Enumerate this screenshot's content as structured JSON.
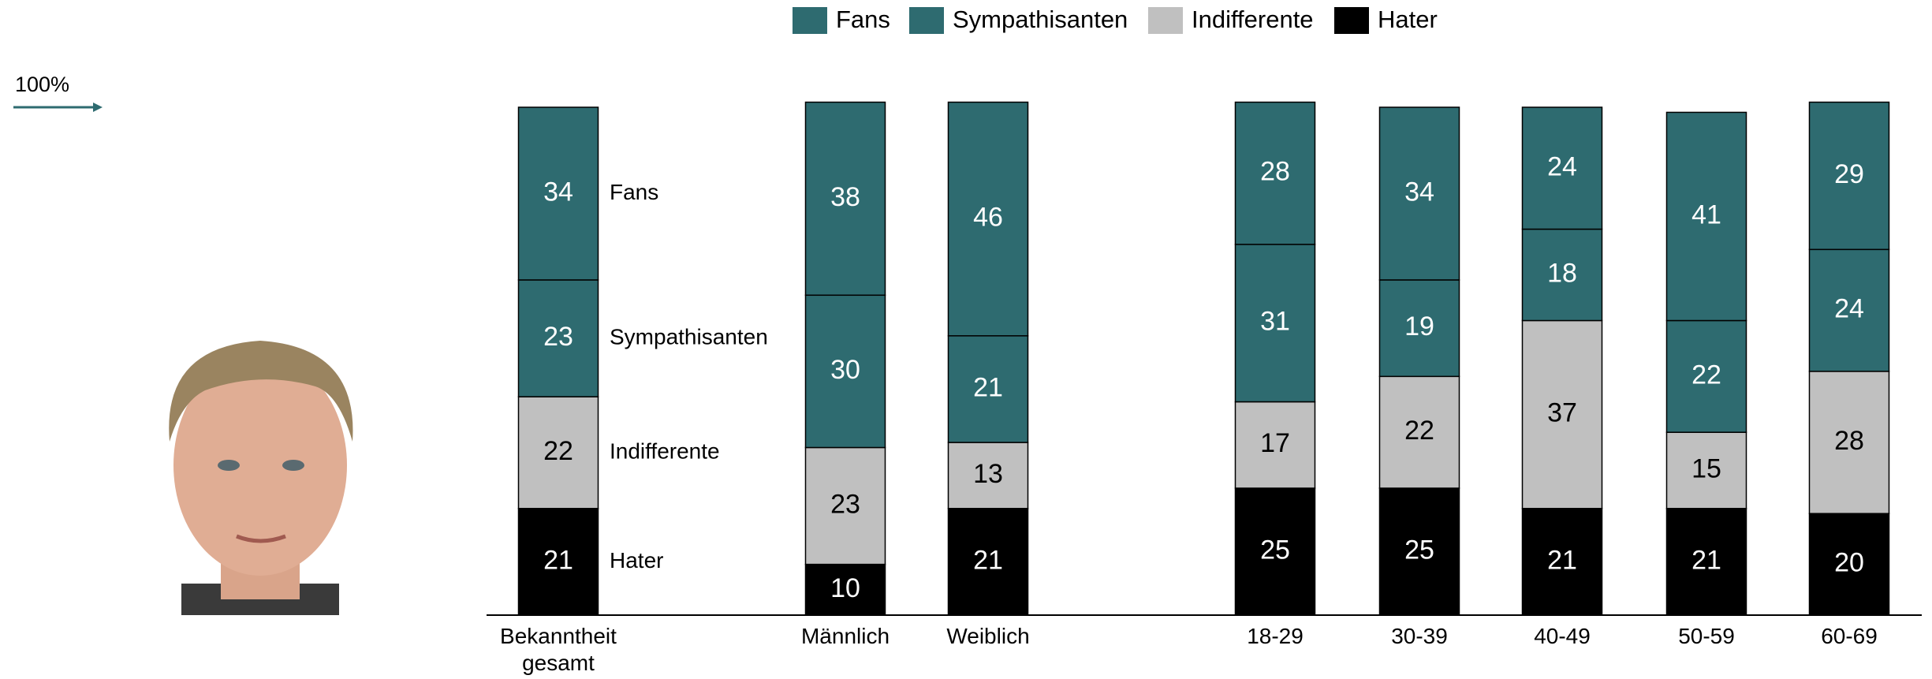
{
  "chart_data": {
    "type": "stacked-bar",
    "categories": [
      "Bekanntheit gesamt",
      "Männlich",
      "Weiblich",
      "18-29",
      "30-39",
      "40-49",
      "50-59",
      "60-69"
    ],
    "series": [
      {
        "name": "Fans",
        "color": "#2e6b70",
        "values": [
          34,
          38,
          46,
          28,
          34,
          24,
          41,
          29
        ]
      },
      {
        "name": "Sympathisanten",
        "color": "#2e6b70",
        "values": [
          23,
          30,
          21,
          31,
          19,
          18,
          22,
          24
        ]
      },
      {
        "name": "Indifferente",
        "color": "#c0c0c0",
        "values": [
          22,
          23,
          13,
          17,
          22,
          37,
          15,
          28
        ]
      },
      {
        "name": "Hater",
        "color": "#000000",
        "values": [
          21,
          10,
          21,
          25,
          25,
          21,
          21,
          20
        ]
      }
    ],
    "ylim": [
      0,
      100
    ],
    "yticks": [
      {
        "value": 100,
        "label": "100%"
      }
    ],
    "legend": "top"
  }
}
